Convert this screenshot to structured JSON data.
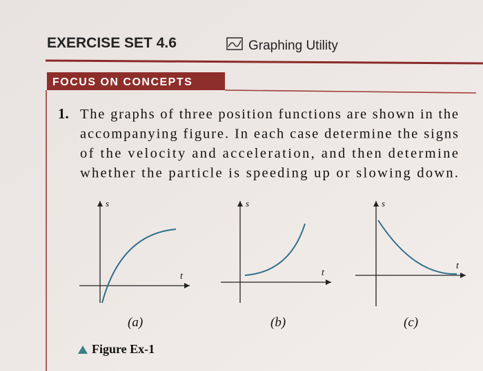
{
  "header": {
    "title": "EXERCISE SET 4.6",
    "utility": "Graphing Utility"
  },
  "section": {
    "label": "FOCUS ON CONCEPTS"
  },
  "problem": {
    "number": "1.",
    "lines": [
      "The graphs of three position functions are shown in the",
      "accompanying figure. In each case determine the signs",
      "of the velocity and acceleration, and then determine",
      "whether the particle is speeding up or slowing down."
    ]
  },
  "figure": {
    "panels": [
      {
        "y_label": "s",
        "x_label": "t",
        "caption": "(a)"
      },
      {
        "y_label": "s",
        "x_label": "t",
        "caption": "(b)"
      },
      {
        "y_label": "s",
        "x_label": "t",
        "caption": "(c)"
      }
    ],
    "caption": "Figure Ex-1"
  }
}
